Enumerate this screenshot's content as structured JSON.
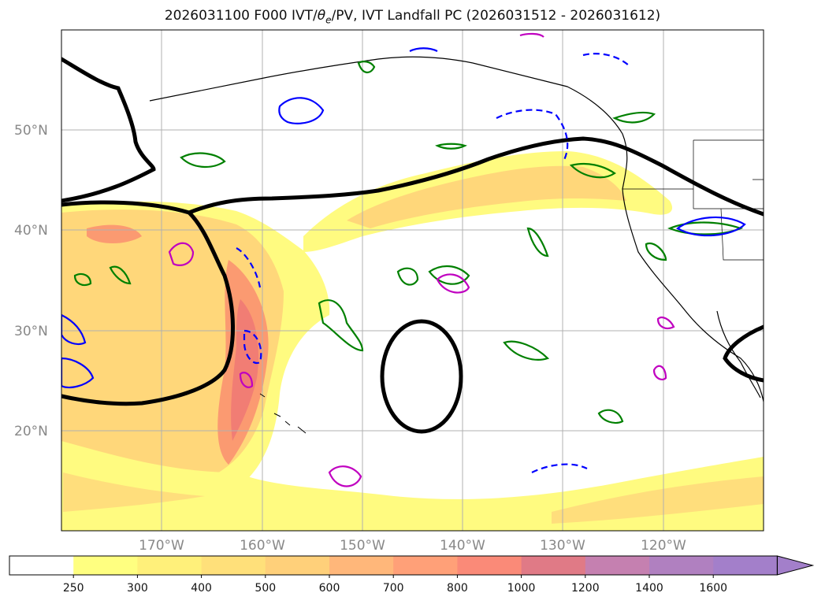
{
  "title": {
    "prefix": "2026031100 F000 IVT/",
    "theta_symbol": "θ",
    "theta_sub": "e",
    "suffix": "/PV, IVT Landfall PC (2026031512 - 2026031612)"
  },
  "map": {
    "lon_range": [
      -180,
      -110
    ],
    "lat_range": [
      10,
      60
    ],
    "grid": true,
    "lat_ticks": [
      {
        "value": 50,
        "label": "50°N"
      },
      {
        "value": 40,
        "label": "40°N"
      },
      {
        "value": 30,
        "label": "30°N"
      },
      {
        "value": 20,
        "label": "20°N"
      }
    ],
    "lon_ticks": [
      {
        "value": -170,
        "label": "170°W"
      },
      {
        "value": -160,
        "label": "160°W"
      },
      {
        "value": -150,
        "label": "150°W"
      },
      {
        "value": -140,
        "label": "140°W"
      },
      {
        "value": -130,
        "label": "130°W"
      },
      {
        "value": -120,
        "label": "120°W"
      }
    ],
    "colors": {
      "ivt_low": "#fffb80",
      "ivt_mid": "#ffd77a",
      "ivt_high": "#fa8f70",
      "ivt_max": "#ef7a74",
      "pc_contour": "#000000",
      "theta_e_contour": "#008000",
      "pv_contour": "#0000ff",
      "magenta_contour": "#c000c0",
      "coastline": "#000000"
    }
  },
  "colorbar": {
    "levels": [
      "250",
      "300",
      "400",
      "500",
      "600",
      "700",
      "800",
      "1000",
      "1200",
      "1400",
      "1600"
    ],
    "colors": [
      "#ffffff",
      "#ffff80",
      "#fff07a",
      "#ffe07a",
      "#ffd07a",
      "#ffb77a",
      "#ffa078",
      "#fa8a78",
      "#e07a86",
      "#c580b0",
      "#b080c0",
      "#a37fca"
    ],
    "extend": "max"
  }
}
